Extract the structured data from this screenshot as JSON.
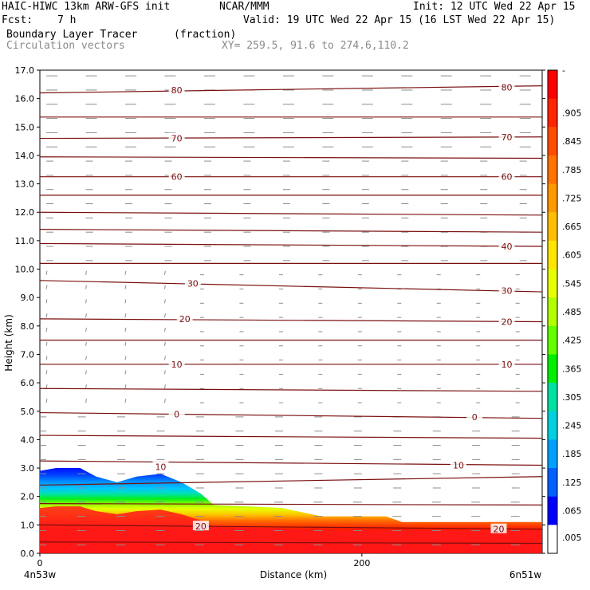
{
  "header": {
    "title_left": "HAIC-HIWC 13km ARW-GFS init",
    "org": "NCAR/MMM",
    "init": "Init: 12 UTC Wed 22 Apr 15",
    "fcst_label": "Fcst:",
    "fcst_value": "7 h",
    "valid": "Valid: 19 UTC Wed 22 Apr 15 (16 LST Wed 22 Apr 15)",
    "field": "Boundary Layer Tracer",
    "field_units": "(fraction)",
    "vectors": "Circulation vectors",
    "xy": "XY= 259.5, 91.6 to 274.6,110.2"
  },
  "chart_data": {
    "type": "heatmap",
    "ylabel": "Height (km)",
    "xlabel": "Distance (km)",
    "ylim": [
      0,
      17
    ],
    "xlim": [
      0,
      312
    ],
    "yticks": [
      "0.0",
      "1.0",
      "2.0",
      "3.0",
      "4.0",
      "5.0",
      "6.0",
      "7.0",
      "8.0",
      "9.0",
      "10.0",
      "11.0",
      "12.0",
      "13.0",
      "14.0",
      "15.0",
      "16.0",
      "17.0"
    ],
    "xticks": [
      {
        "x": 0,
        "label": "0"
      },
      {
        "x": 200,
        "label": "200"
      }
    ],
    "x_end_labels": {
      "left": "4n53w",
      "right": "6n51w"
    },
    "colorbar_labels": [
      "-",
      ".905",
      ".845",
      ".785",
      ".725",
      ".665",
      ".605",
      ".545",
      ".485",
      ".425",
      ".365",
      ".305",
      ".245",
      ".185",
      ".125",
      ".065",
      ".005"
    ],
    "colorbar_colors": [
      "#ff0000",
      "#ff2600",
      "#ff4d00",
      "#ff7300",
      "#ff9900",
      "#ffbf00",
      "#ffe600",
      "#e6ff00",
      "#b3ff00",
      "#66ff00",
      "#00f000",
      "#00e0a0",
      "#00d0e0",
      "#00a0ff",
      "#0060ff",
      "#0000ff",
      "#ffffff"
    ],
    "contour_lines": [
      {
        "label": "80",
        "left_km": 16.2,
        "right_km": 16.45,
        "label_positions": [
          [
            85,
            16.3
          ],
          [
            290,
            16.4
          ]
        ]
      },
      {
        "label": "",
        "left_km": 15.35,
        "right_km": 15.35,
        "label_positions": []
      },
      {
        "label": "70",
        "left_km": 14.6,
        "right_km": 14.65,
        "label_positions": [
          [
            85,
            14.6
          ],
          [
            290,
            14.65
          ]
        ]
      },
      {
        "label": "",
        "left_km": 13.95,
        "right_km": 13.9,
        "label_positions": []
      },
      {
        "label": "60",
        "left_km": 13.25,
        "right_km": 13.25,
        "label_positions": [
          [
            85,
            13.25
          ],
          [
            290,
            13.25
          ]
        ]
      },
      {
        "label": "",
        "left_km": 12.6,
        "right_km": 12.6,
        "label_positions": []
      },
      {
        "label": "",
        "left_km": 12.0,
        "right_km": 11.9,
        "label_positions": []
      },
      {
        "label": "",
        "left_km": 11.4,
        "right_km": 11.3,
        "label_positions": []
      },
      {
        "label": "40",
        "left_km": 10.9,
        "right_km": 10.8,
        "label_positions": [
          [
            290,
            10.8
          ]
        ]
      },
      {
        "label": "",
        "left_km": 10.2,
        "right_km": 10.2,
        "label_positions": []
      },
      {
        "label": "30",
        "left_km": 9.6,
        "right_km": 9.2,
        "label_positions": [
          [
            95,
            9.5
          ],
          [
            290,
            9.25
          ]
        ]
      },
      {
        "label": "20",
        "left_km": 8.25,
        "right_km": 8.15,
        "label_positions": [
          [
            90,
            8.25
          ],
          [
            290,
            8.15
          ]
        ]
      },
      {
        "label": "",
        "left_km": 7.5,
        "right_km": 7.5,
        "label_positions": []
      },
      {
        "label": "10",
        "left_km": 6.65,
        "right_km": 6.65,
        "label_positions": [
          [
            85,
            6.65
          ],
          [
            290,
            6.65
          ]
        ]
      },
      {
        "label": "",
        "left_km": 5.8,
        "right_km": 5.7,
        "label_positions": []
      },
      {
        "label": "0",
        "left_km": 4.95,
        "right_km": 4.75,
        "label_positions": [
          [
            85,
            4.9
          ],
          [
            270,
            4.8
          ]
        ]
      },
      {
        "label": "",
        "left_km": 4.15,
        "right_km": 4.05,
        "label_positions": []
      },
      {
        "label": "10",
        "left_km": 3.25,
        "right_km": 3.1,
        "label_positions": [
          [
            75,
            3.05
          ],
          [
            260,
            3.1
          ]
        ]
      },
      {
        "label": "",
        "left_km": 2.4,
        "right_km": 2.7,
        "label_positions": []
      },
      {
        "label": "",
        "left_km": 1.75,
        "right_km": 1.7,
        "label_positions": []
      },
      {
        "label": "20",
        "left_km": 1.0,
        "right_km": 0.85,
        "label_positions": [
          [
            100,
            0.95
          ],
          [
            285,
            0.85
          ]
        ]
      },
      {
        "label": "",
        "left_km": 0.4,
        "right_km": 0.35,
        "label_positions": []
      }
    ],
    "tracer_top_km": [
      [
        0,
        2.9
      ],
      [
        10,
        3.0
      ],
      [
        25,
        3.0
      ],
      [
        35,
        2.7
      ],
      [
        48,
        2.5
      ],
      [
        60,
        2.7
      ],
      [
        75,
        2.8
      ],
      [
        88,
        2.5
      ],
      [
        100,
        2.1
      ],
      [
        108,
        1.7
      ],
      [
        150,
        1.6
      ],
      [
        175,
        1.3
      ],
      [
        215,
        1.3
      ],
      [
        225,
        1.1
      ],
      [
        312,
        1.1
      ]
    ],
    "colors": {
      "contour": "#7a0f0f",
      "vector": "#8c8c8c",
      "red_layer": "#ff1a1a"
    }
  }
}
